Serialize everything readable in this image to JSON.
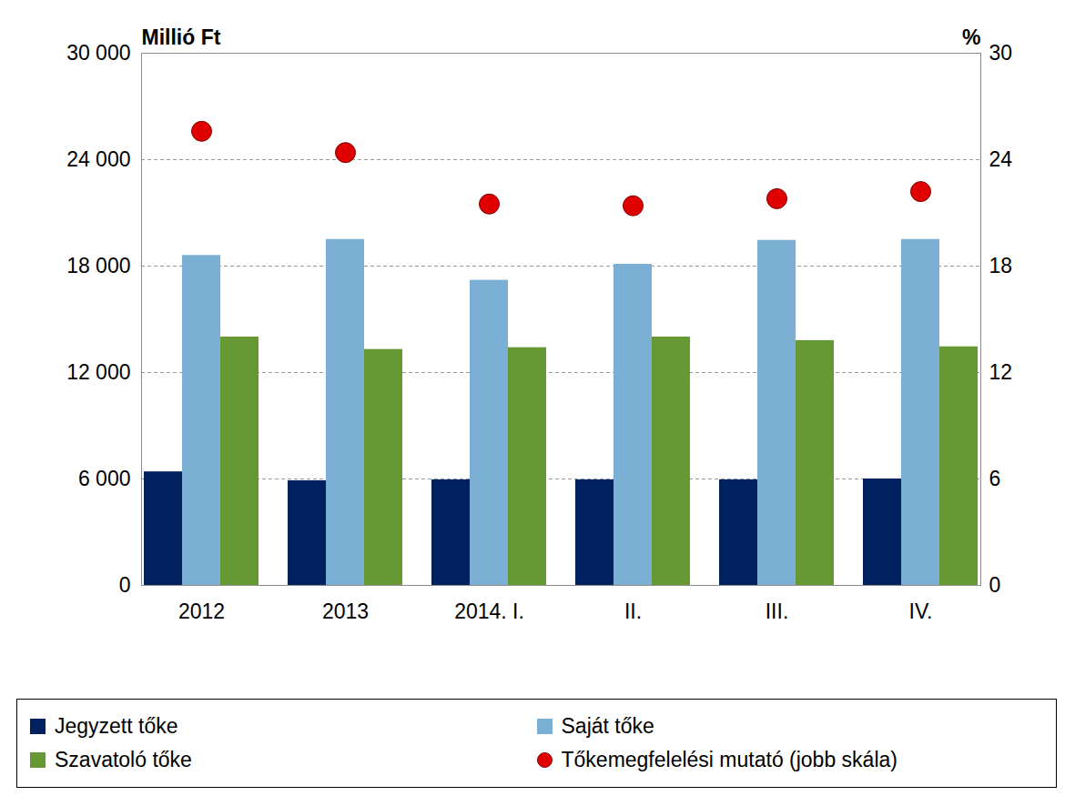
{
  "chart_data": {
    "type": "bar",
    "categories": [
      "2012",
      "2013",
      "2014. I.",
      "II.",
      "III.",
      "IV."
    ],
    "series": [
      {
        "name": "Jegyzett tőke",
        "type": "bar",
        "color": "#002060",
        "values": [
          6400,
          5900,
          5950,
          5950,
          5950,
          6000
        ]
      },
      {
        "name": "Saját tőke",
        "type": "bar",
        "color": "#7BAFD4",
        "values": [
          18600,
          19500,
          17200,
          18100,
          19450,
          19500
        ]
      },
      {
        "name": "Szavatoló tőke",
        "type": "bar",
        "color": "#669933",
        "values": [
          14000,
          13300,
          13400,
          14000,
          13800,
          13450
        ]
      },
      {
        "name": "Tőkemegfelelési mutató (jobb skála)",
        "type": "scatter",
        "marker": "circle",
        "axis": "y2",
        "color": "#E00000",
        "values": [
          25.6,
          24.4,
          21.5,
          21.4,
          21.8,
          22.2
        ]
      }
    ],
    "y_label": "Millió Ft",
    "y2_label": "%",
    "ylim": [
      0,
      30000
    ],
    "yticks": [
      0,
      {
        "value": 6000,
        "label": "6 000"
      },
      {
        "value": 12000,
        "label": "12 000"
      },
      {
        "value": 18000,
        "label": "18 000"
      },
      {
        "value": 24000,
        "label": "24 000"
      },
      {
        "value": 30000,
        "label": "30 000"
      }
    ],
    "y2lim": [
      0,
      30
    ],
    "y2ticks": [
      0,
      6,
      12,
      18,
      24,
      30
    ],
    "grid": true,
    "legend": "bottom"
  }
}
